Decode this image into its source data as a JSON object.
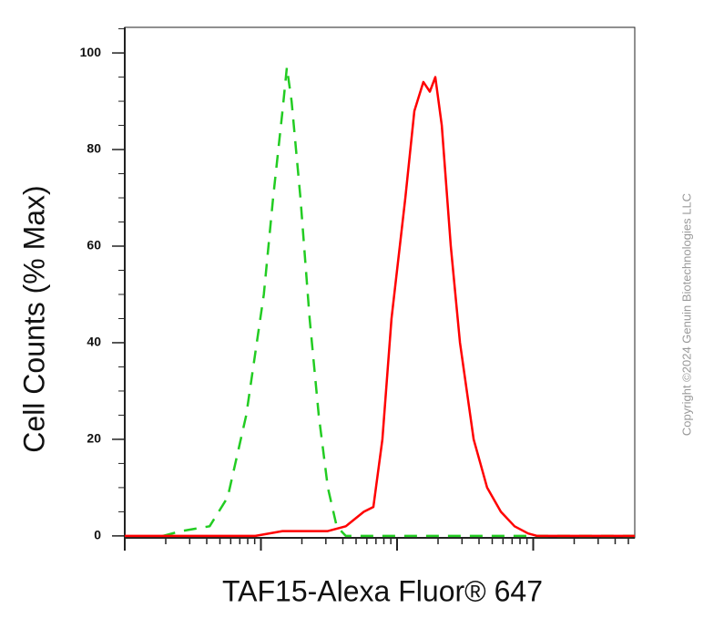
{
  "chart_data": {
    "type": "line",
    "ylabel": "Cell Counts (% Max)",
    "xlabel": "TAF15-Alexa Fluor® 647",
    "copyright": "Copyright ©2024 Genuin Biotechnologies LLC",
    "xscale": "log",
    "xlim": [
      1,
      5570
    ],
    "xticks": [
      1,
      10,
      100,
      1000
    ],
    "ylim": [
      -0.4,
      105.3
    ],
    "yticks": [
      0,
      20,
      40,
      60,
      80,
      100
    ],
    "series": [
      {
        "color": "#22cc22",
        "dashed": true,
        "x": [
          1.9,
          2.6,
          4.2,
          5.7,
          7.8,
          10.5,
          12.3,
          14.4,
          15.5,
          16.8,
          19.5,
          22.8,
          26.6,
          31,
          36,
          42,
          5570
        ],
        "values": [
          0,
          1,
          2,
          8,
          25,
          50,
          70,
          88,
          97,
          90,
          70,
          45,
          25,
          10,
          2,
          0,
          0
        ]
      },
      {
        "color": "#ff0000",
        "dashed": false,
        "x": [
          1,
          9.1,
          14.4,
          31,
          42,
          57,
          67,
          78,
          91,
          115,
          134,
          156,
          174,
          191,
          213,
          248,
          290,
          365,
          459,
          579,
          729,
          918,
          1072,
          5570
        ],
        "values": [
          0,
          0,
          1,
          1,
          2,
          5,
          6,
          20,
          45,
          70,
          88,
          94,
          92,
          95,
          85,
          60,
          40,
          20,
          10,
          5,
          2,
          0.5,
          0,
          0
        ]
      }
    ]
  }
}
